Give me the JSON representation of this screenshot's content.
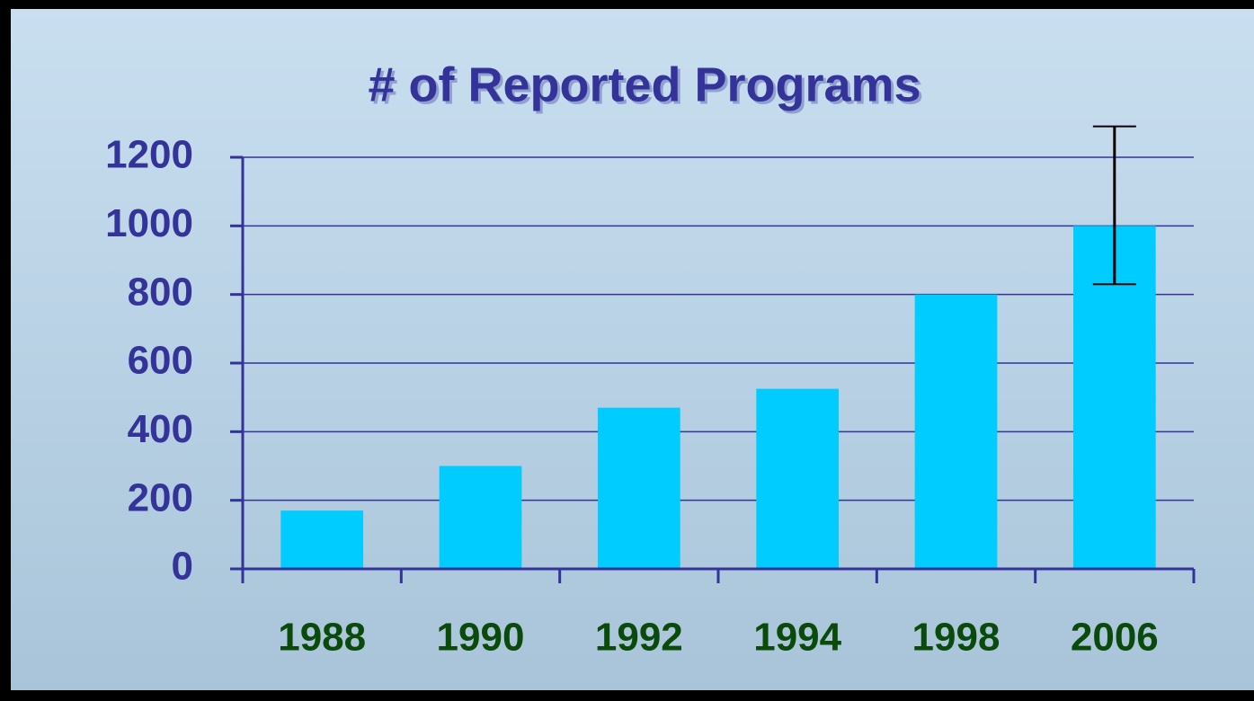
{
  "chart_data": {
    "type": "bar",
    "title": "# of Reported Programs",
    "categories": [
      "1988",
      "1990",
      "1992",
      "1994",
      "1998",
      "2006"
    ],
    "values": [
      170,
      300,
      470,
      525,
      800,
      1000
    ],
    "errors_minus": [
      null,
      null,
      null,
      null,
      null,
      170
    ],
    "errors_plus": [
      null,
      null,
      null,
      null,
      null,
      290
    ],
    "color": "#00ccff",
    "ylim": [
      0,
      1200
    ],
    "yticks": [
      0,
      200,
      400,
      600,
      800,
      1000,
      1200
    ],
    "grid": true
  }
}
